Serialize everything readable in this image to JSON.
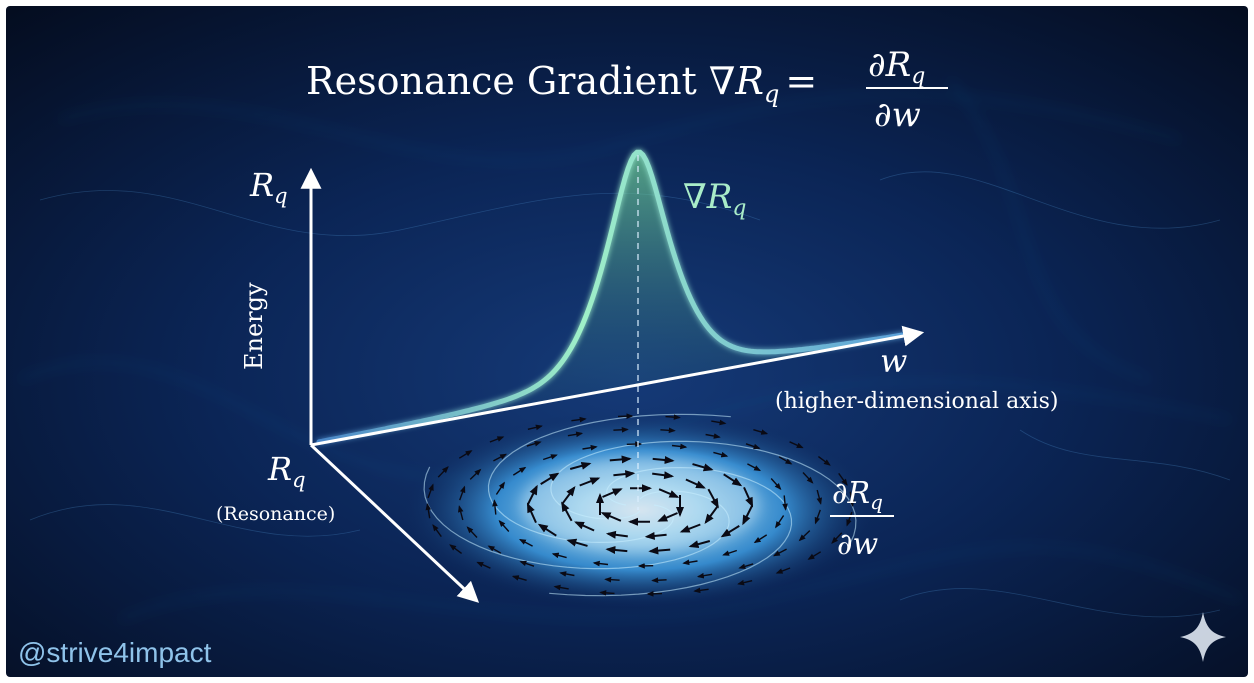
{
  "title": {
    "text": "Resonance Gradient",
    "nabla": "∇",
    "var": "R",
    "sub": "q",
    "equals": "=",
    "frac_num_partial": "∂",
    "frac_num_var": "R",
    "frac_num_sub": "q",
    "frac_den": "∂w"
  },
  "axes": {
    "vertical_label": "Energy",
    "vertical_top_var": "R",
    "vertical_top_sub": "q",
    "origin_var": "R",
    "origin_sub": "q",
    "origin_caption": "(Resonance)",
    "w_label": "w",
    "w_caption": "(higher-dimensional axis)"
  },
  "curve_label": {
    "nabla": "∇",
    "var": "R",
    "sub": "q"
  },
  "vortex_label": {
    "num_partial": "∂",
    "num_var": "R",
    "num_sub": "q",
    "den": "∂w"
  },
  "watermark": "@strive4impact",
  "icons": {
    "corner": "sparkle-icon"
  },
  "colors": {
    "background": "#07142e",
    "curve": "#8fe3c0",
    "axis": "#ffffff",
    "vortex": "#6fd0ff",
    "watermark": "#8fc3ea"
  }
}
